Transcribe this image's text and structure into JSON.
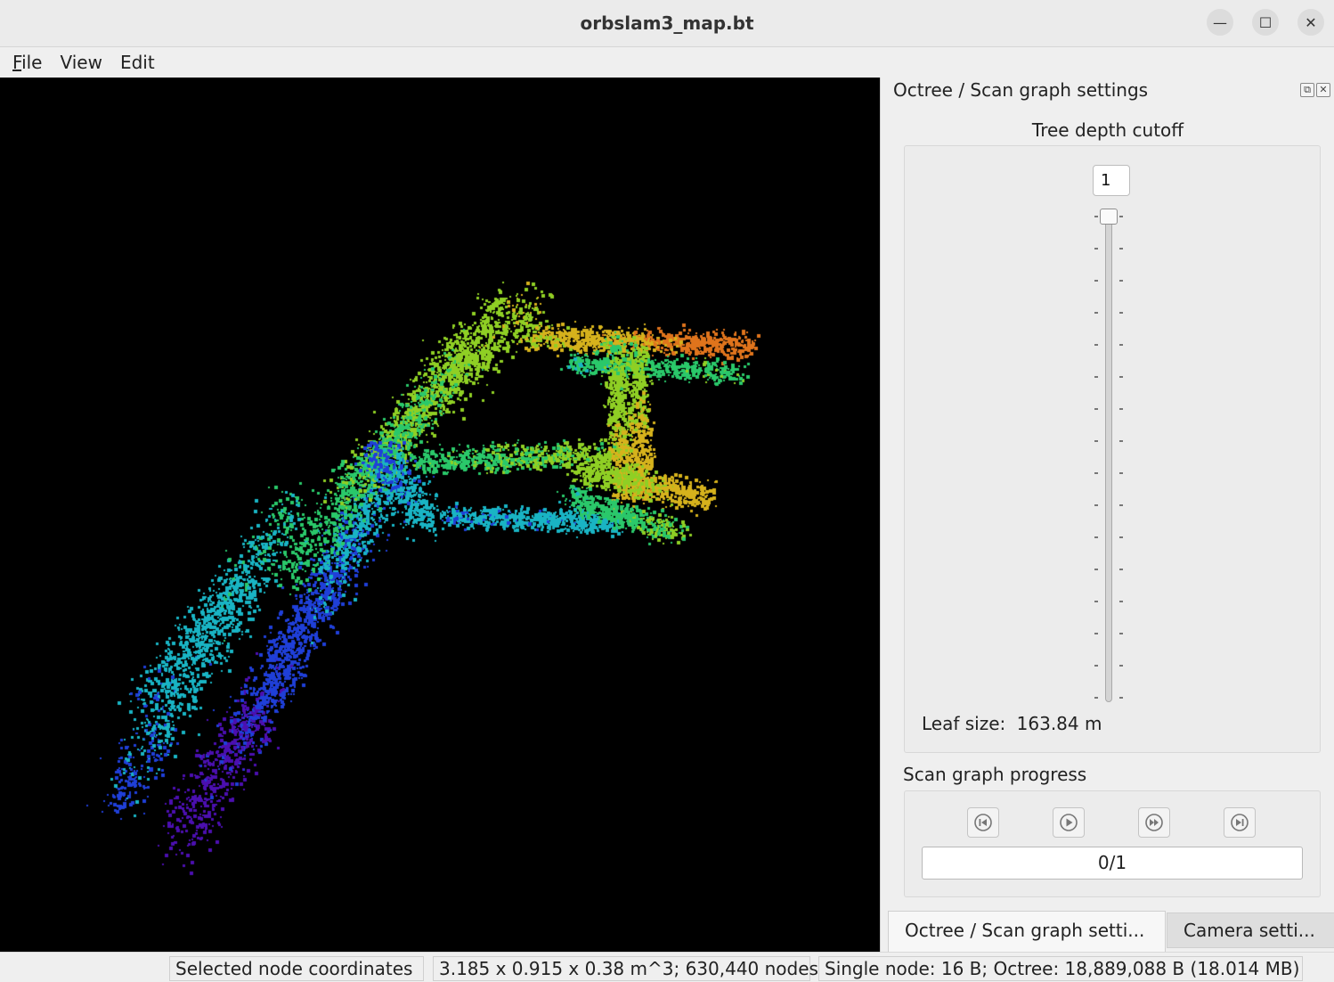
{
  "window": {
    "title": "orbslam3_map.bt"
  },
  "menu": {
    "file": "File",
    "view": "View",
    "edit": "Edit"
  },
  "dock": {
    "title": "Octree / Scan graph settings",
    "tree_depth_label": "Tree depth cutoff",
    "depth_value": "1",
    "leaf_size_label": "Leaf size:",
    "leaf_size_value": "163.84 m",
    "scan_progress_label": "Scan graph progress",
    "scan_counter": "0/1",
    "tabs": [
      "Octree / Scan graph setti...",
      "Camera setti..."
    ]
  },
  "status": {
    "selected_node": "Selected node coordinates",
    "extent": "3.185 x 0.915 x 0.38 m^3; 630,440 nodes",
    "memory": "Single node: 16 B; Octree: 18,889,088 B (18.014 MB)"
  },
  "colors": {
    "viewport_bg": "#000000",
    "colormap": [
      "#4b0fb0",
      "#1f3fd8",
      "#19b4c4",
      "#2ac86a",
      "#8fcf24",
      "#d6b21c",
      "#e0741c"
    ]
  }
}
